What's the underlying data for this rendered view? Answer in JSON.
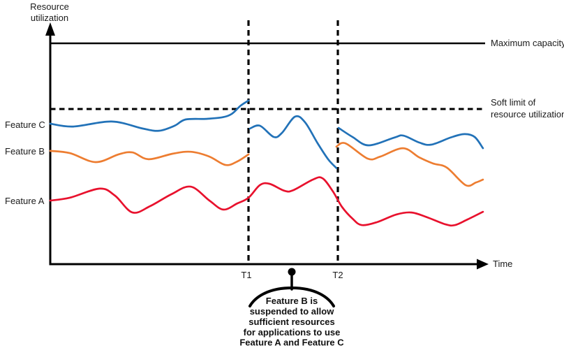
{
  "labels": {
    "y_axis_line1": "Resource",
    "y_axis_line2": "utilization",
    "x_axis": "Time",
    "max_capacity": "Maximum capacity",
    "soft_limit_line1": "Soft limit of",
    "soft_limit_line2": "resource utilization",
    "t1": "T1",
    "t2": "T2"
  },
  "annotation": {
    "lines": [
      "Feature B is",
      "suspended to allow",
      "sufficient resources",
      "for applications to use",
      "Feature A and Feature C"
    ]
  },
  "chart_data": {
    "type": "line",
    "title": "",
    "xlabel": "Time",
    "ylabel": "Resource utilization",
    "x_unit": "relative time (0-100, schematic)",
    "y_unit": "percent of maximum capacity (estimated from gridlines)",
    "xlim": [
      0,
      100
    ],
    "ylim": [
      0,
      110
    ],
    "grid": false,
    "legend_position": "left-of-curves",
    "reference_lines": [
      {
        "label": "Maximum capacity",
        "utilization": 100,
        "style": "solid",
        "color": "#000000"
      },
      {
        "label": "Soft limit of resource utilization",
        "utilization": 70,
        "style": "dashed",
        "color": "#000000"
      }
    ],
    "time_markers": [
      {
        "label": "T1",
        "t": 45.6,
        "style": "dashed-vertical"
      },
      {
        "label": "T2",
        "t": 66.1,
        "style": "dashed-vertical"
      }
    ],
    "callout": {
      "t": 55.5,
      "text": "Feature B is suspended to allow sufficient resources for applications to use Feature A and Feature C"
    },
    "series": [
      {
        "name": "Feature C",
        "color": "#2272B8",
        "note": "briefly exceeds soft limit just before T1; drops at T1 and again recovers after T2",
        "segments": [
          [
            [
              0,
              63.6
            ],
            [
              5.3,
              62.3
            ],
            [
              14.1,
              64.6
            ],
            [
              21.3,
              61.4
            ],
            [
              25,
              60.4
            ],
            [
              28.6,
              62.7
            ],
            [
              31.1,
              65.5
            ],
            [
              35.8,
              65.8
            ],
            [
              39.5,
              66.5
            ],
            [
              41.7,
              68
            ],
            [
              43.8,
              71.8
            ],
            [
              45.6,
              74.1
            ]
          ],
          [
            [
              45.9,
              61.4
            ],
            [
              48.2,
              62.7
            ],
            [
              51.4,
              57.6
            ],
            [
              53.3,
              59.5
            ],
            [
              56.3,
              66.8
            ],
            [
              58.6,
              64.2
            ],
            [
              61.5,
              54.7
            ],
            [
              63.9,
              47.5
            ],
            [
              65.8,
              43.5
            ]
          ],
          [
            [
              66.3,
              61.7
            ],
            [
              69.5,
              57.6
            ],
            [
              73.2,
              53.8
            ],
            [
              79.1,
              57.3
            ],
            [
              81.2,
              58.2
            ],
            [
              84.8,
              55.1
            ],
            [
              87.6,
              54.1
            ],
            [
              92,
              57.3
            ],
            [
              95.2,
              58.9
            ],
            [
              97.6,
              57.6
            ],
            [
              99.5,
              52.5
            ]
          ]
        ]
      },
      {
        "name": "Feature B",
        "color": "#ED7D31",
        "note": "suspended between T1 and T2 (no data drawn)",
        "segments": [
          [
            [
              0,
              51.3
            ],
            [
              4.5,
              50.3
            ],
            [
              10.4,
              46.2
            ],
            [
              15.7,
              49.7
            ],
            [
              18.9,
              50.6
            ],
            [
              22.6,
              47.5
            ],
            [
              28.1,
              50
            ],
            [
              32.3,
              50.9
            ],
            [
              36.6,
              48.7
            ],
            [
              40.3,
              44.9
            ],
            [
              43,
              46.5
            ],
            [
              45.6,
              49.7
            ]
          ],
          [
            [
              65.8,
              53.2
            ],
            [
              67.9,
              54.7
            ],
            [
              73,
              47.8
            ],
            [
              75.9,
              48.7
            ],
            [
              81.1,
              52.5
            ],
            [
              84.8,
              48.4
            ],
            [
              88,
              45.6
            ],
            [
              91.2,
              43.7
            ],
            [
              95.5,
              35.8
            ],
            [
              97.9,
              37
            ],
            [
              99.5,
              38.3
            ]
          ]
        ]
      },
      {
        "name": "Feature A",
        "color": "#E8112D",
        "note": "continuous; drops to lower band after T2",
        "segments": [
          [
            [
              0,
              28.8
            ],
            [
              4.5,
              30.1
            ],
            [
              11.4,
              34.2
            ],
            [
              14.9,
              31
            ],
            [
              18.9,
              23.4
            ],
            [
              23,
              26.3
            ],
            [
              27.8,
              31.6
            ],
            [
              32.3,
              35.1
            ],
            [
              36.6,
              28.8
            ],
            [
              39.8,
              24.7
            ],
            [
              43,
              27.5
            ],
            [
              45.6,
              30.1
            ],
            [
              48.2,
              35.8
            ],
            [
              50.4,
              36.4
            ],
            [
              53.9,
              33.2
            ],
            [
              55.9,
              33.5
            ],
            [
              60.4,
              38.3
            ],
            [
              62.6,
              38.9
            ],
            [
              65,
              32.9
            ],
            [
              67.1,
              25.9
            ],
            [
              69.5,
              20.6
            ],
            [
              71.6,
              17.7
            ],
            [
              75.1,
              19
            ],
            [
              79.6,
              22.5
            ],
            [
              83.1,
              23.4
            ],
            [
              86.7,
              21.2
            ],
            [
              90.9,
              18
            ],
            [
              93.1,
              17.7
            ],
            [
              96,
              20.3
            ],
            [
              99.5,
              23.7
            ]
          ]
        ]
      }
    ]
  }
}
